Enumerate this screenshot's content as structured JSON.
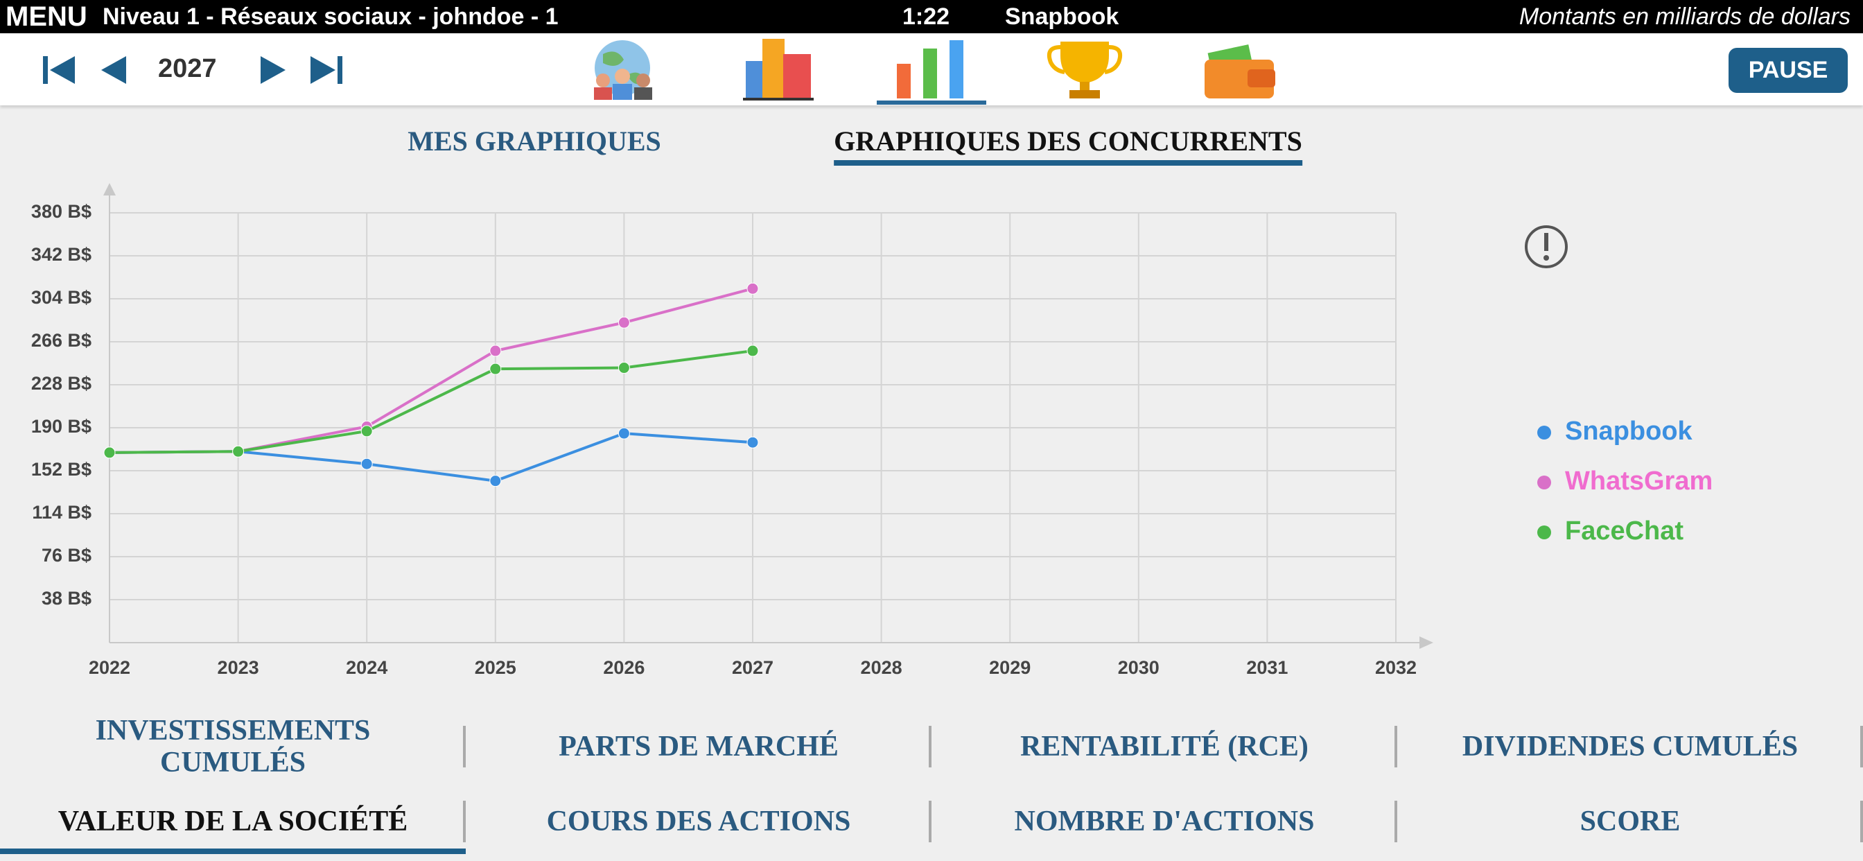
{
  "top_bar": {
    "menu": "MENU",
    "level": "Niveau 1 - Réseaux sociaux - johndoe - 1",
    "time": "1:22",
    "company": "Snapbook",
    "note": "Montants en milliards de dollars"
  },
  "toolbar": {
    "year": "2027",
    "pause": "PAUSE"
  },
  "tabs": {
    "items": [
      "MES GRAPHIQUES",
      "GRAPHIQUES DES CONCURRENTS"
    ],
    "active": 1
  },
  "chart_data": {
    "type": "line",
    "x": [
      2022,
      2023,
      2024,
      2025,
      2026,
      2027
    ],
    "series": [
      {
        "name": "Snapbook",
        "color": "#3b8fe0",
        "values": [
          168,
          169,
          158,
          143,
          185,
          177
        ]
      },
      {
        "name": "WhatsGram",
        "color": "#d970c8",
        "values": [
          168,
          169,
          191,
          258,
          283,
          313
        ]
      },
      {
        "name": "FaceChat",
        "color": "#4cb84a",
        "values": [
          168,
          169,
          187,
          242,
          243,
          258
        ]
      }
    ],
    "xlim": [
      2022,
      2032
    ],
    "xticks": [
      2022,
      2023,
      2024,
      2025,
      2026,
      2027,
      2028,
      2029,
      2030,
      2031,
      2032
    ],
    "ylim": [
      0,
      380
    ],
    "yticks": [
      {
        "value": 38,
        "label": "38 B$"
      },
      {
        "value": 76,
        "label": "76 B$"
      },
      {
        "value": 114,
        "label": "114 B$"
      },
      {
        "value": 152,
        "label": "152 B$"
      },
      {
        "value": 190,
        "label": "190 B$"
      },
      {
        "value": 228,
        "label": "228 B$"
      },
      {
        "value": 266,
        "label": "266 B$"
      },
      {
        "value": 304,
        "label": "304 B$"
      },
      {
        "value": 342,
        "label": "342 B$"
      },
      {
        "value": 380,
        "label": "380 B$"
      }
    ],
    "grid": true,
    "legend": "right"
  },
  "buttons": {
    "row1": [
      "INVESTISSEMENTS CUMULÉS",
      "PARTS DE MARCHÉ",
      "RENTABILITÉ (RCE)",
      "DIVIDENDES CUMULÉS"
    ],
    "row2": [
      "VALEUR DE LA SOCIÉTÉ",
      "COURS DES ACTIONS",
      "NOMBRE D'ACTIONS",
      "SCORE"
    ]
  }
}
